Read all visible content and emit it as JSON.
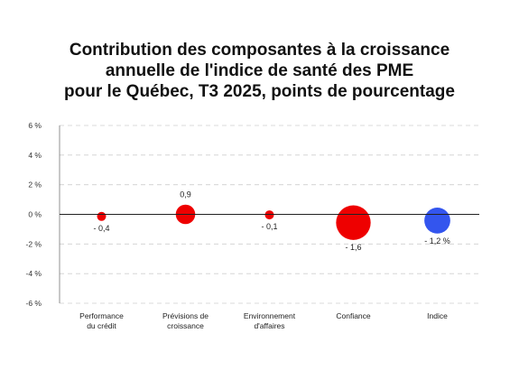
{
  "title_lines": [
    "Contribution des composantes à la croissance",
    "annuelle de l'indice de santé des PME",
    "pour le Québec, T3 2025, points de pourcentage"
  ],
  "chart_data": {
    "type": "bar",
    "title": "Contribution des composantes à la croissance annuelle de l'indice de santé des PME pour le Québec, T3 2025, points de pourcentage",
    "categories": [
      [
        "Performance",
        "du crédit"
      ],
      [
        "Prévisions de",
        "croissance"
      ],
      [
        "Environnement",
        "d'affaires"
      ],
      [
        "Confiance"
      ],
      [
        "Indice"
      ]
    ],
    "values": [
      -0.4,
      0.9,
      -0.1,
      -1.6,
      -1.2
    ],
    "data_labels": [
      "- 0,4",
      "0,9",
      "- 0,1",
      "- 1,6",
      "- 1,2 %"
    ],
    "colors": [
      "#ee0000",
      "#ee0000",
      "#ee0000",
      "#ee0000",
      "#3355ee"
    ],
    "ylim": [
      -6,
      6
    ],
    "yticks": [
      6,
      4,
      2,
      0,
      -2,
      -4,
      -6
    ],
    "ytick_labels": [
      "6 %",
      "4 %",
      "2 %",
      "0 %",
      "-2 %",
      "-4 %",
      "-6 %"
    ],
    "grid": true
  }
}
